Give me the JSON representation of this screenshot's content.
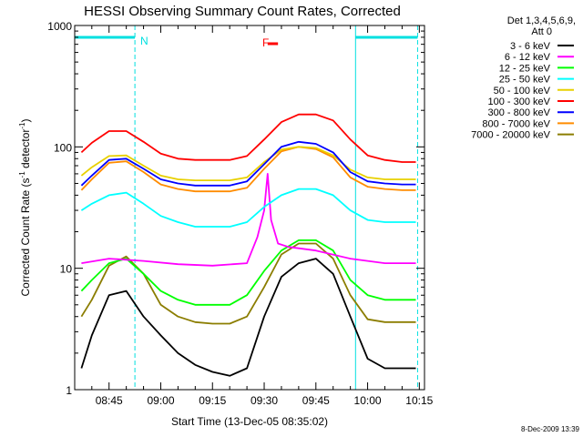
{
  "chart_data": {
    "type": "line",
    "title": "HESSI Observing Summary Count Rates, Corrected",
    "xlabel": "Start Time (13-Dec-05 08:35:02)",
    "ylabel_main": "Corrected Count Rate (s",
    "ylabel_sup1": "-1",
    "ylabel_mid": " detector",
    "ylabel_sup2": "-1",
    "ylabel_end": ")",
    "yscale": "log",
    "ylim": [
      1,
      1000
    ],
    "xlim": [
      "08:35:02",
      "10:16:30"
    ],
    "x_ticks": [
      "08:45",
      "09:00",
      "09:15",
      "09:30",
      "09:45",
      "10:00",
      "10:15"
    ],
    "y_ticks": [
      "1",
      "10",
      "100",
      "1000"
    ],
    "legend_title_1": "Det 1,3,4,5,6,9,",
    "legend_title_2": "Att 0",
    "legend_placement": "right",
    "timestamp": "8-Dec-2009 13:39",
    "annotations": {
      "night_marker": "N",
      "flare_marker": "F",
      "flare_marker_range": [
        "09:31",
        "09:34"
      ],
      "night_periods": [
        [
          "08:35:02",
          "08:52:30"
        ],
        [
          "09:56:30",
          "10:14:30"
        ]
      ],
      "night_period_lines": [
        "08:52:30",
        "09:56:30",
        "10:14:30"
      ]
    },
    "series": [
      {
        "name": "3 - 6 keV",
        "color": "#000000",
        "x": [
          "08:37",
          "08:40",
          "08:45",
          "08:50",
          "08:55",
          "09:00",
          "09:05",
          "09:10",
          "09:15",
          "09:20",
          "09:25",
          "09:30",
          "09:35",
          "09:40",
          "09:45",
          "09:50",
          "09:55",
          "10:00",
          "10:05",
          "10:10",
          "10:14"
        ],
        "y": [
          1.5,
          2.8,
          6.0,
          6.5,
          4.0,
          2.8,
          2.0,
          1.6,
          1.4,
          1.3,
          1.5,
          4.0,
          8.5,
          11.0,
          12.0,
          9.0,
          4.0,
          1.8,
          1.5,
          1.5,
          1.5
        ]
      },
      {
        "name": "6 - 12 keV",
        "color": "#ff00ff",
        "x": [
          "08:37",
          "08:45",
          "08:55",
          "09:05",
          "09:15",
          "09:25",
          "09:28",
          "09:30",
          "09:31",
          "09:32",
          "09:34",
          "09:37",
          "09:45",
          "09:55",
          "10:05",
          "10:14"
        ],
        "y": [
          11,
          12,
          11.5,
          10.8,
          10.5,
          11,
          18,
          30,
          60,
          25,
          16,
          15,
          14,
          12,
          11,
          11
        ]
      },
      {
        "name": "12 - 25 keV",
        "color": "#00ff00",
        "x": [
          "08:37",
          "08:40",
          "08:45",
          "08:50",
          "08:55",
          "09:00",
          "09:05",
          "09:10",
          "09:15",
          "09:20",
          "09:25",
          "09:30",
          "09:35",
          "09:40",
          "09:45",
          "09:50",
          "09:55",
          "10:00",
          "10:05",
          "10:10",
          "10:14"
        ],
        "y": [
          6.5,
          8.0,
          11.0,
          12.0,
          9.0,
          6.5,
          5.5,
          5.0,
          5.0,
          5.0,
          6.0,
          9.5,
          14.0,
          17.0,
          17.0,
          14.0,
          8.0,
          6.0,
          5.5,
          5.5,
          5.5
        ]
      },
      {
        "name": "25 - 50 keV",
        "color": "#00ffff",
        "x": [
          "08:37",
          "08:40",
          "08:45",
          "08:50",
          "08:55",
          "09:00",
          "09:05",
          "09:10",
          "09:15",
          "09:20",
          "09:25",
          "09:30",
          "09:35",
          "09:40",
          "09:45",
          "09:50",
          "09:55",
          "10:00",
          "10:05",
          "10:10",
          "10:14"
        ],
        "y": [
          30,
          34,
          40,
          42,
          34,
          27,
          24,
          22,
          22,
          22,
          24,
          32,
          40,
          45,
          45,
          40,
          30,
          25,
          24,
          24,
          24
        ]
      },
      {
        "name": "50 - 100 keV",
        "color": "#e8d000",
        "x": [
          "08:37",
          "08:40",
          "08:45",
          "08:50",
          "08:55",
          "09:00",
          "09:05",
          "09:10",
          "09:15",
          "09:20",
          "09:25",
          "09:30",
          "09:35",
          "09:40",
          "09:45",
          "09:50",
          "09:55",
          "10:00",
          "10:05",
          "10:10",
          "10:14"
        ],
        "y": [
          58,
          68,
          84,
          85,
          70,
          58,
          54,
          53,
          53,
          53,
          56,
          75,
          95,
          100,
          98,
          85,
          65,
          56,
          54,
          54,
          54
        ]
      },
      {
        "name": "100 - 300 keV",
        "color": "#ff0000",
        "x": [
          "08:37",
          "08:40",
          "08:45",
          "08:50",
          "08:55",
          "09:00",
          "09:05",
          "09:10",
          "09:15",
          "09:20",
          "09:25",
          "09:30",
          "09:35",
          "09:40",
          "09:45",
          "09:50",
          "09:55",
          "10:00",
          "10:05",
          "10:10",
          "10:14"
        ],
        "y": [
          90,
          108,
          135,
          135,
          110,
          88,
          80,
          78,
          78,
          78,
          84,
          115,
          160,
          185,
          185,
          165,
          115,
          85,
          78,
          75,
          75
        ]
      },
      {
        "name": "300 - 800 keV",
        "color": "#0000ff",
        "x": [
          "08:37",
          "08:40",
          "08:45",
          "08:50",
          "08:55",
          "09:00",
          "09:05",
          "09:10",
          "09:15",
          "09:20",
          "09:25",
          "09:30",
          "09:35",
          "09:40",
          "09:45",
          "09:50",
          "09:55",
          "10:00",
          "10:05",
          "10:10",
          "10:14"
        ],
        "y": [
          48,
          58,
          78,
          80,
          66,
          54,
          50,
          48,
          48,
          48,
          52,
          72,
          100,
          110,
          106,
          90,
          62,
          52,
          50,
          49,
          49
        ]
      },
      {
        "name": "800 - 7000 keV",
        "color": "#ff8c00",
        "x": [
          "08:37",
          "08:40",
          "08:45",
          "08:50",
          "08:55",
          "09:00",
          "09:05",
          "09:10",
          "09:15",
          "09:20",
          "09:25",
          "09:30",
          "09:35",
          "09:40",
          "09:45",
          "09:50",
          "09:55",
          "10:00",
          "10:05",
          "10:10",
          "10:14"
        ],
        "y": [
          44,
          54,
          74,
          76,
          62,
          49,
          45,
          43,
          43,
          43,
          46,
          66,
          92,
          100,
          96,
          82,
          56,
          47,
          45,
          44,
          44
        ]
      },
      {
        "name": "7000 - 20000 keV",
        "color": "#8b7d00",
        "x": [
          "08:37",
          "08:40",
          "08:45",
          "08:50",
          "08:55",
          "09:00",
          "09:05",
          "09:10",
          "09:15",
          "09:20",
          "09:25",
          "09:30",
          "09:35",
          "09:40",
          "09:45",
          "09:50",
          "09:55",
          "10:00",
          "10:05",
          "10:10",
          "10:14"
        ],
        "y": [
          4.0,
          5.5,
          10.5,
          12.5,
          9.0,
          5.0,
          4.0,
          3.6,
          3.5,
          3.5,
          4.0,
          7.0,
          13.0,
          16.0,
          16.0,
          12.0,
          6.0,
          3.8,
          3.6,
          3.6,
          3.6
        ]
      }
    ]
  }
}
